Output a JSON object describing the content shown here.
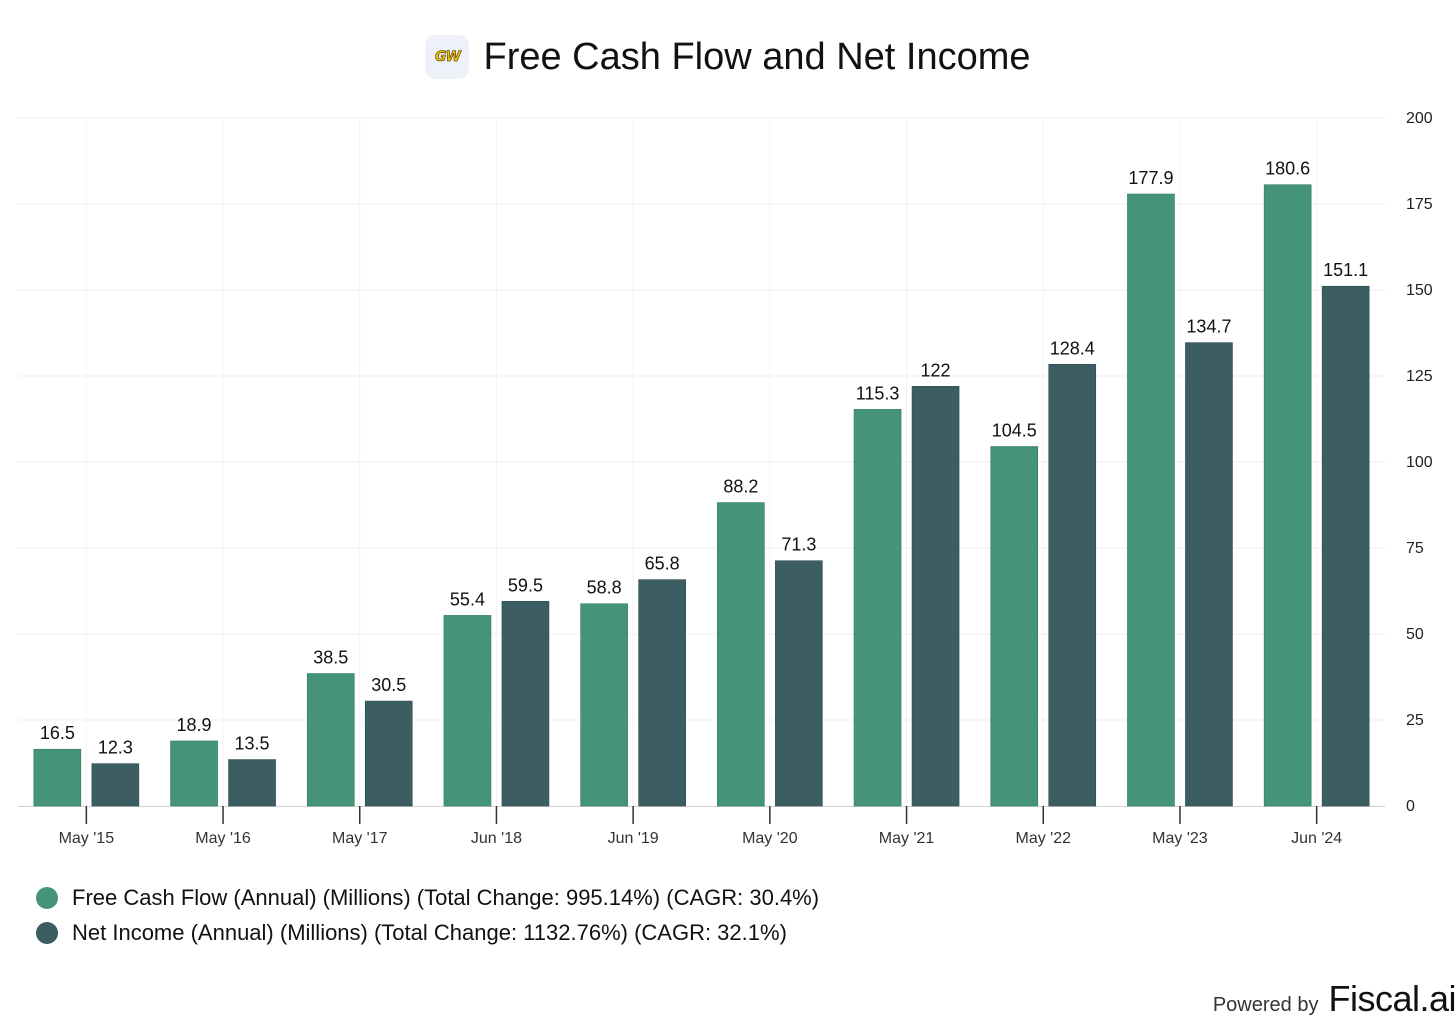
{
  "header": {
    "logo_text": "GW",
    "title": "Free Cash Flow and Net Income"
  },
  "chart_data": {
    "type": "bar",
    "title": "Free Cash Flow and Net Income",
    "categories": [
      "May '15",
      "May '16",
      "May '17",
      "Jun '18",
      "Jun '19",
      "May '20",
      "May '21",
      "May '22",
      "May '23",
      "Jun '24"
    ],
    "series": [
      {
        "name": "Free Cash Flow (Annual) (Millions) (Total Change: 995.14%) (CAGR: 30.4%)",
        "color": "#44937a",
        "values": [
          16.5,
          18.9,
          38.5,
          55.4,
          58.8,
          88.2,
          115.3,
          104.5,
          177.9,
          180.6
        ],
        "labels": [
          "16.5",
          "18.9",
          "38.5",
          "55.4",
          "58.8",
          "88.2",
          "115.3",
          "104.5",
          "177.9",
          "180.6"
        ]
      },
      {
        "name": "Net Income (Annual) (Millions) (Total Change: 1132.76%) (CAGR: 32.1%)",
        "color": "#3c5e62",
        "values": [
          12.3,
          13.5,
          30.5,
          59.5,
          65.8,
          71.3,
          122,
          128.4,
          134.7,
          151.1
        ],
        "labels": [
          "12.3",
          "13.5",
          "30.5",
          "59.5",
          "65.8",
          "71.3",
          "122",
          "128.4",
          "134.7",
          "151.1"
        ]
      }
    ],
    "ylim": [
      0,
      200
    ],
    "yticks": [
      0,
      25,
      50,
      75,
      100,
      125,
      150,
      175,
      200
    ],
    "ytick_labels": [
      "0",
      "25",
      "50",
      "75",
      "100",
      "125",
      "150",
      "175",
      "200"
    ],
    "y_axis_side": "right",
    "grid": true,
    "legend_position": "bottom-left"
  },
  "footer": {
    "powered_by": "Powered by",
    "brand": "Fiscal.ai"
  }
}
